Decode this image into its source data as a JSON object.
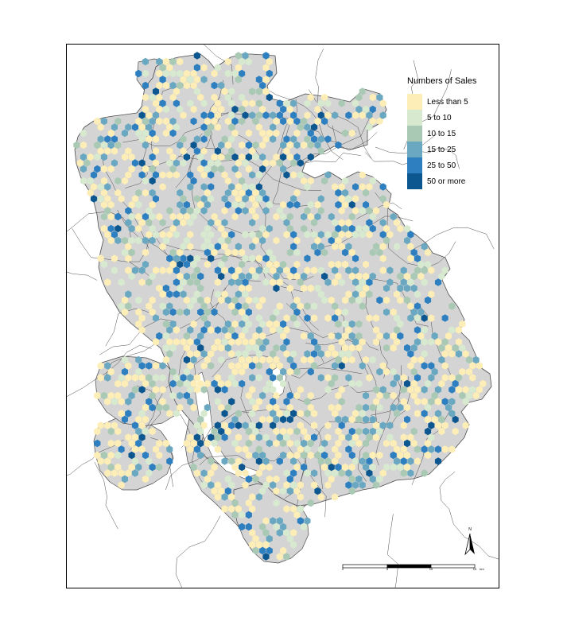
{
  "legend": {
    "title": "Numbers of Sales",
    "items": [
      {
        "label": "Less than 5",
        "color": "#fdedb6"
      },
      {
        "label": "5 to 10",
        "color": "#d7ead0"
      },
      {
        "label": "10 to 15",
        "color": "#a9c9b4"
      },
      {
        "label": "15 to 25",
        "color": "#6aa8c1"
      },
      {
        "label": "25 to 50",
        "color": "#2d7fbf"
      },
      {
        "label": "50 or more",
        "color": "#0c578f"
      }
    ]
  },
  "map_colors": {
    "land": "#d4d4d4",
    "boundary": "#4d4d4d"
  },
  "north_arrow": {
    "label": "N"
  },
  "scale_bar": {
    "ticks": [
      "0",
      "5",
      "10",
      "15"
    ],
    "unit": "km"
  }
}
